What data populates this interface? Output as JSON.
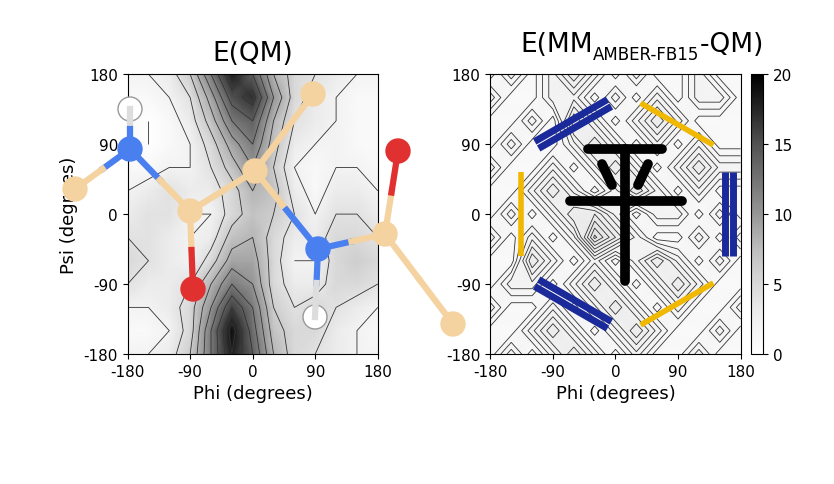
{
  "chart_data": [
    {
      "type": "heatmap",
      "title": "E(QM)",
      "x_label": "Phi (degrees)",
      "y_label": "Psi (degrees)",
      "x": [
        -180,
        -150,
        -120,
        -90,
        -60,
        -30,
        0,
        30,
        60,
        90,
        120,
        150,
        180
      ],
      "y": [
        -180,
        -150,
        -120,
        -90,
        -60,
        -30,
        0,
        30,
        60,
        90,
        120,
        150,
        180
      ],
      "cells": [
        [
          2,
          2,
          3,
          6,
          12,
          18,
          14,
          8,
          5,
          4,
          3,
          2,
          2
        ],
        [
          1,
          1,
          2,
          5,
          12,
          19,
          13,
          7,
          5,
          5,
          3,
          2,
          1
        ],
        [
          2,
          2,
          3,
          5,
          10,
          16,
          12,
          6,
          4,
          5,
          4,
          3,
          2
        ],
        [
          4,
          3,
          3,
          4,
          8,
          12,
          10,
          5,
          3,
          3,
          5,
          5,
          4
        ],
        [
          5,
          4,
          3,
          2,
          5,
          9,
          9,
          5,
          2,
          2,
          5,
          6,
          5
        ],
        [
          4,
          4,
          3,
          2,
          3,
          7,
          8,
          5,
          3,
          3,
          5,
          5,
          4
        ],
        [
          3,
          4,
          4,
          2,
          2,
          5,
          7,
          6,
          4,
          2,
          4,
          4,
          3
        ],
        [
          2,
          3,
          4,
          3,
          3,
          5,
          8,
          7,
          3,
          1,
          3,
          3,
          2
        ],
        [
          1,
          1,
          2,
          2,
          4,
          7,
          10,
          6,
          2,
          1,
          2,
          2,
          1
        ],
        [
          1,
          0,
          1,
          2,
          5,
          9,
          12,
          7,
          3,
          2,
          2,
          1,
          1
        ],
        [
          1,
          0,
          1,
          3,
          7,
          12,
          14,
          8,
          4,
          3,
          2,
          1,
          1
        ],
        [
          1,
          1,
          2,
          4,
          9,
          15,
          17,
          10,
          5,
          3,
          2,
          1,
          1
        ],
        [
          2,
          2,
          3,
          6,
          12,
          18,
          14,
          8,
          5,
          4,
          3,
          2,
          2
        ]
      ],
      "xlim": [
        -180,
        180
      ],
      "ylim": [
        -180,
        180
      ],
      "xticks": [
        -180,
        -90,
        0,
        90,
        180
      ],
      "yticks": [
        -180,
        -90,
        0,
        90,
        180
      ],
      "color_range": [
        0,
        20
      ]
    },
    {
      "type": "heatmap",
      "title": "E(MM",
      "title_subscript": "AMBER-FB15",
      "title_suffix": "-QM)",
      "x_label": "Phi (degrees)",
      "x": [
        -180,
        -150,
        -120,
        -90,
        -60,
        -30,
        0,
        30,
        60,
        90,
        120,
        150,
        180
      ],
      "y": [
        -180,
        -150,
        -120,
        -90,
        -60,
        -30,
        0,
        30,
        60,
        90,
        120,
        150,
        180
      ],
      "cells": [
        [
          1,
          2,
          1,
          2,
          3,
          2,
          1,
          2,
          1,
          1,
          2,
          1,
          1
        ],
        [
          1,
          1,
          2,
          3,
          2,
          1,
          2,
          3,
          2,
          1,
          1,
          2,
          1
        ],
        [
          2,
          1,
          1,
          2,
          1,
          2,
          3,
          2,
          1,
          2,
          1,
          1,
          2
        ],
        [
          1,
          2,
          2,
          1,
          2,
          3,
          2,
          1,
          2,
          3,
          2,
          1,
          1
        ],
        [
          1,
          1,
          3,
          2,
          1,
          2,
          1,
          2,
          3,
          2,
          1,
          2,
          1
        ],
        [
          2,
          1,
          2,
          1,
          2,
          4,
          3,
          2,
          1,
          1,
          2,
          1,
          2
        ],
        [
          1,
          2,
          1,
          2,
          3,
          3,
          2,
          1,
          2,
          2,
          1,
          2,
          1
        ],
        [
          1,
          1,
          2,
          3,
          2,
          1,
          2,
          3,
          2,
          1,
          2,
          1,
          1
        ],
        [
          2,
          1,
          1,
          2,
          1,
          2,
          3,
          2,
          1,
          2,
          3,
          2,
          2
        ],
        [
          1,
          2,
          1,
          1,
          2,
          3,
          2,
          1,
          2,
          1,
          2,
          1,
          1
        ],
        [
          1,
          1,
          2,
          1,
          3,
          2,
          1,
          2,
          3,
          2,
          1,
          1,
          1
        ],
        [
          2,
          1,
          1,
          2,
          2,
          1,
          2,
          1,
          2,
          1,
          2,
          2,
          1
        ],
        [
          1,
          2,
          1,
          2,
          3,
          2,
          1,
          2,
          1,
          1,
          2,
          1,
          1
        ]
      ],
      "xlim": [
        -180,
        180
      ],
      "ylim": [
        -180,
        180
      ],
      "xticks": [
        -180,
        -90,
        0,
        90,
        180
      ],
      "yticks": [
        -180,
        -90,
        0,
        90,
        180
      ],
      "color_range": [
        0,
        20
      ],
      "color_ticks": [
        0,
        5,
        10,
        15,
        20
      ]
    }
  ]
}
